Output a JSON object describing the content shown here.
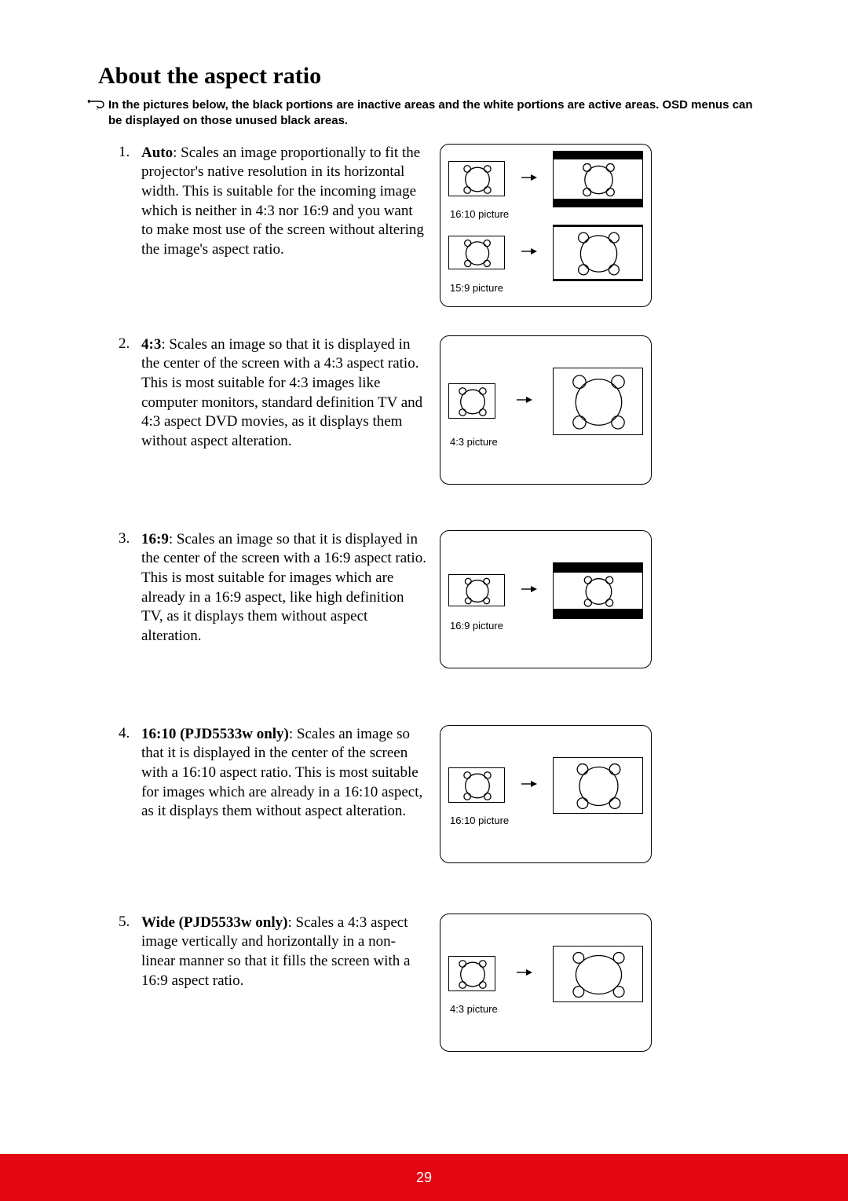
{
  "title": "About the aspect ratio",
  "note": "In the pictures below, the black portions are inactive areas and the white portions are active areas. OSD menus can be displayed on those unused black areas.",
  "items": [
    {
      "num": "1.",
      "label": "Auto",
      "desc": ": Scales an image proportionally to fit the projector's native resolution in its horizontal width. This is suitable for the incoming image which is neither in 4:3 nor 16:9 and you want to make most use of the screen without altering the image's aspect ratio.",
      "diagrams": [
        {
          "label": "16:10 picture",
          "srcW": 72,
          "srcH": 45,
          "dstW": 115,
          "dstH": 72,
          "dstBarTop": 10,
          "dstBarBot": 10,
          "dstPadL": 0,
          "dstPadR": 0,
          "stretchX": 1.0
        },
        {
          "label": "15:9 picture",
          "srcW": 72,
          "srcH": 43,
          "dstW": 115,
          "dstH": 72,
          "dstBarTop": 2,
          "dstBarBot": 2,
          "dstPadL": 0,
          "dstPadR": 0,
          "stretchX": 1.0
        }
      ]
    },
    {
      "num": "2.",
      "label": "4:3",
      "desc": ": Scales an image so that it is displayed in the center of the screen with a 4:3 aspect ratio. This is most suitable for 4:3 images like computer monitors, standard definition TV and 4:3 aspect DVD movies, as it displays them without aspect alteration.",
      "diagrams": [
        {
          "label": "4:3 picture",
          "srcW": 60,
          "srcH": 45,
          "dstW": 115,
          "dstH": 86,
          "dstBarTop": 0,
          "dstBarBot": 0,
          "dstPadL": 0,
          "dstPadR": 0,
          "stretchX": 1.0
        }
      ],
      "boxPad": 40
    },
    {
      "num": "3.",
      "label": "16:9",
      "desc": ": Scales an image so that it is displayed in the center of the screen with a 16:9 aspect ratio. This is most suitable for images which are already in a 16:9 aspect, like high definition TV, as it displays them without aspect alteration.",
      "diagrams": [
        {
          "label": "16:9 picture",
          "srcW": 72,
          "srcH": 41,
          "dstW": 115,
          "dstH": 72,
          "dstBarTop": 12,
          "dstBarBot": 12,
          "dstPadL": 0,
          "dstPadR": 0,
          "stretchX": 1.0
        }
      ],
      "boxPad": 40
    },
    {
      "num": "4.",
      "label": "16:10 (PJD5533w only)",
      "desc": ": Scales an image so that it is displayed in the center of the screen with a 16:10 aspect ratio. This is most suitable for images which are already in a 16:10 aspect, as it displays them without aspect alteration.",
      "diagrams": [
        {
          "label": "16:10 picture",
          "srcW": 72,
          "srcH": 45,
          "dstW": 115,
          "dstH": 72,
          "dstBarTop": 0,
          "dstBarBot": 0,
          "dstPadL": 0,
          "dstPadR": 0,
          "stretchX": 1.0
        }
      ],
      "boxPad": 40
    },
    {
      "num": "5.",
      "label": "Wide (PJD5533w only)",
      "desc": ": Scales a 4:3 aspect image vertically and horizontally in a non-linear manner so that it fills the screen with a 16:9 aspect ratio.",
      "diagrams": [
        {
          "label": "4:3 picture",
          "srcW": 60,
          "srcH": 45,
          "dstW": 115,
          "dstH": 72,
          "dstBarTop": 0,
          "dstBarBot": 0,
          "dstPadL": 0,
          "dstPadR": 0,
          "stretchX": 1.25
        }
      ],
      "boxPad": 40
    }
  ],
  "gap_after": [
    36,
    58,
    72,
    64,
    0
  ],
  "page_number": "29",
  "colors": {
    "footer_bg": "#e30613",
    "footer_fg": "#ffffff",
    "text": "#000000"
  }
}
